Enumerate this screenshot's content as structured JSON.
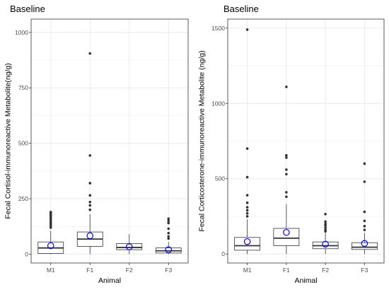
{
  "chart_data": [
    {
      "type": "box",
      "title": "Baseline",
      "xlabel": "Animal",
      "ylabel": "Fecal Cortisol-immunoreactive Metabolite(ng/g)",
      "ylim": [
        -40,
        1060
      ],
      "yticks": [
        0,
        250,
        500,
        750,
        1000
      ],
      "grid": true,
      "categories": [
        "M1",
        "F1",
        "F2",
        "F3"
      ],
      "boxes": [
        {
          "q1": 3,
          "median": 28,
          "q3": 55,
          "whisker_low": 0,
          "whisker_high": 105,
          "mean": 38,
          "outliers": [
            120,
            128,
            135,
            142,
            150,
            158,
            165,
            172,
            178,
            185,
            190
          ]
        },
        {
          "q1": 35,
          "median": 68,
          "q3": 100,
          "whisker_low": 0,
          "whisker_high": 180,
          "mean": 83,
          "outliers": [
            200,
            220,
            235,
            265,
            320,
            445,
            905
          ]
        },
        {
          "q1": 20,
          "median": 30,
          "q3": 48,
          "whisker_low": 0,
          "whisker_high": 90,
          "mean": 33,
          "outliers": []
        },
        {
          "q1": 5,
          "median": 15,
          "q3": 28,
          "whisker_low": 0,
          "whisker_high": 55,
          "mean": 20,
          "outliers": [
            70,
            80,
            95,
            115,
            140,
            150,
            160
          ]
        }
      ]
    },
    {
      "type": "box",
      "title": "Baseline",
      "xlabel": "Animal",
      "ylabel": "Fecal Corticosterone-immunoreactive Metabolite (ng/g)",
      "ylim": [
        -60,
        1560
      ],
      "yticks": [
        0,
        500,
        1000,
        1500
      ],
      "grid": true,
      "categories": [
        "M1",
        "F1",
        "F2",
        "F3"
      ],
      "boxes": [
        {
          "q1": 25,
          "median": 55,
          "q3": 110,
          "whisker_low": 0,
          "whisker_high": 230,
          "mean": 82,
          "outliers": [
            250,
            270,
            290,
            310,
            340,
            390,
            510,
            700,
            1490
          ]
        },
        {
          "q1": 55,
          "median": 105,
          "q3": 170,
          "whisker_low": 0,
          "whisker_high": 330,
          "mean": 143,
          "outliers": [
            380,
            410,
            530,
            560,
            640,
            655,
            1110
          ]
        },
        {
          "q1": 35,
          "median": 55,
          "q3": 80,
          "whisker_low": 0,
          "whisker_high": 140,
          "mean": 65,
          "outliers": [
            150,
            160,
            175,
            190,
            200,
            215,
            265
          ]
        },
        {
          "q1": 30,
          "median": 45,
          "q3": 75,
          "whisker_low": 0,
          "whisker_high": 140,
          "mean": 70,
          "outliers": [
            160,
            185,
            220,
            280,
            480,
            600
          ]
        }
      ]
    }
  ],
  "colors": {
    "panel_border": "#333333",
    "grid": "#ebebeb",
    "box_fill": "#ffffff",
    "box_stroke": "#333333",
    "outlier": "#333333",
    "mean_marker": "#0000ff"
  }
}
